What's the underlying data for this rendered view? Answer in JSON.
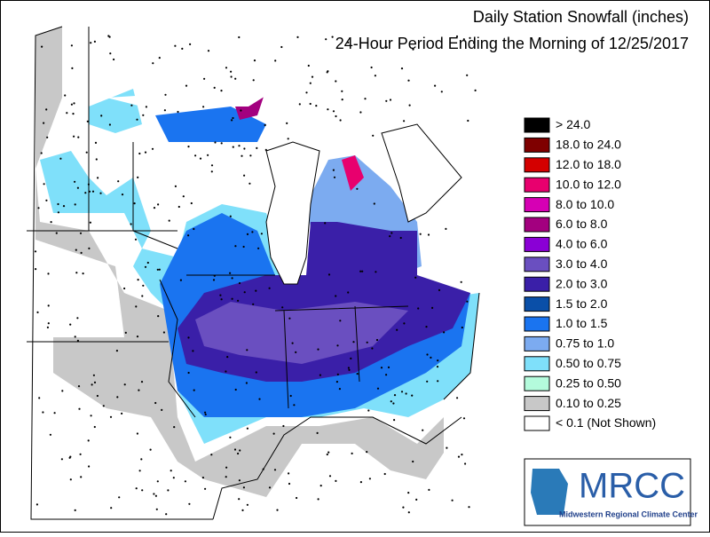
{
  "title": "Daily Station Snowfall (inches)",
  "subtitle": "24-Hour Period Ending the Morning of 12/25/2017",
  "legend": {
    "items": [
      {
        "label": "> 24.0",
        "color": "#000000"
      },
      {
        "label": "18.0 to 24.0",
        "color": "#7f0000"
      },
      {
        "label": "12.0 to 18.0",
        "color": "#d40000"
      },
      {
        "label": "10.0 to 12.0",
        "color": "#e8006e"
      },
      {
        "label": "8.0 to 10.0",
        "color": "#d600b4"
      },
      {
        "label": "6.0 to 8.0",
        "color": "#a3007f"
      },
      {
        "label": "4.0 to 6.0",
        "color": "#8a00d6"
      },
      {
        "label": "3.0 to 4.0",
        "color": "#6a4fc0"
      },
      {
        "label": "2.0 to 3.0",
        "color": "#3a1fa8"
      },
      {
        "label": "1.5 to 2.0",
        "color": "#0a4fa8"
      },
      {
        "label": "1.0 to 1.5",
        "color": "#1a74f0"
      },
      {
        "label": "0.75 to 1.0",
        "color": "#7cabf0"
      },
      {
        "label": "0.50 to 0.75",
        "color": "#7fe0fa"
      },
      {
        "label": "0.25 to 0.50",
        "color": "#b4fbdc"
      },
      {
        "label": "0.10 to 0.25",
        "color": "#c8c8c8"
      },
      {
        "label": "< 0.1 (Not Shown)",
        "color": "#ffffff"
      }
    ]
  },
  "logo": {
    "name": "MRCC",
    "subtitle": "Midwestern Regional Climate Center"
  }
}
